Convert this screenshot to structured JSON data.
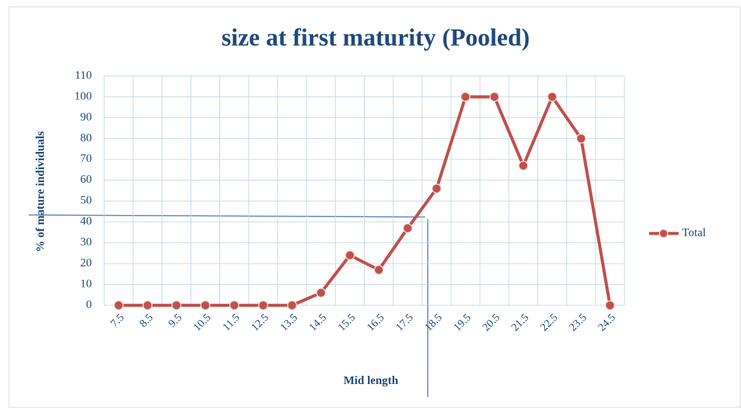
{
  "chart_data": {
    "type": "line",
    "title": "size at first maturity (Pooled)",
    "x_label": "Mid length",
    "y_label": "% of mature individuals",
    "categories": [
      "7.5",
      "8.5",
      "9.5",
      "10.5",
      "11.5",
      "12.5",
      "13.5",
      "14.5",
      "15.5",
      "16.5",
      "17.5",
      "18.5",
      "19.5",
      "20.5",
      "21.5",
      "22.5",
      "23.5",
      "24.5"
    ],
    "series": [
      {
        "name": "Total",
        "color": "#c0504d",
        "values": [
          0,
          0,
          0,
          0,
          0,
          0,
          0,
          6,
          24,
          17,
          37,
          56,
          100,
          100,
          67,
          100,
          80,
          0
        ]
      }
    ],
    "ylim": [
      0,
      110
    ],
    "yticks": [
      0,
      10,
      20,
      30,
      40,
      50,
      60,
      70,
      80,
      90,
      100,
      110
    ],
    "grid": true,
    "legend": "right"
  }
}
